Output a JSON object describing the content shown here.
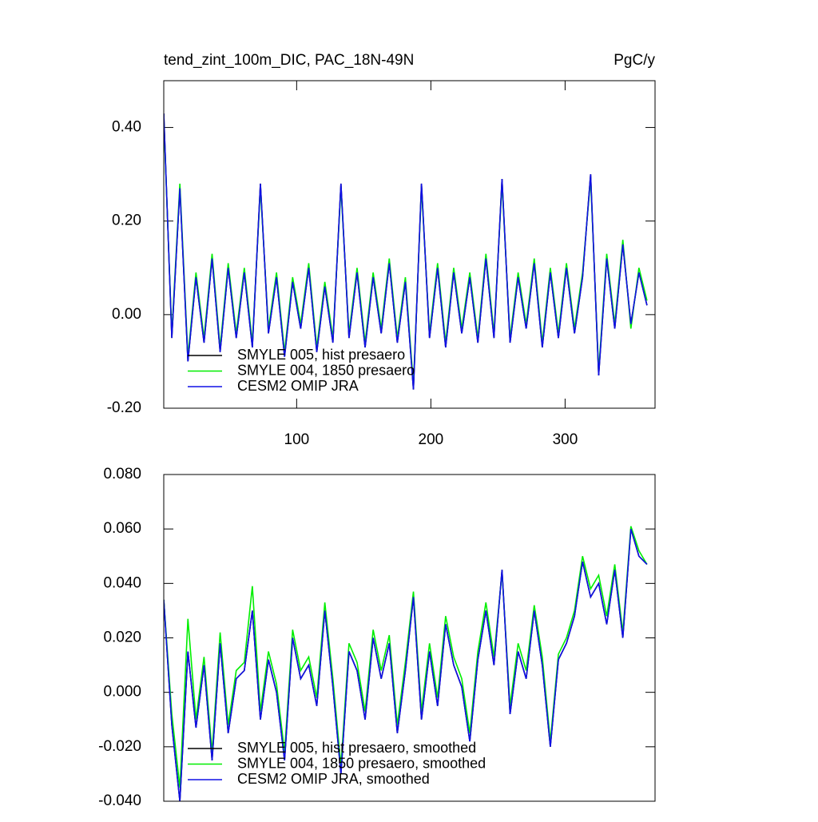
{
  "chart_data": [
    {
      "type": "line",
      "title": "tend_zint_100m_DIC, PAC_18N-49N",
      "units": "PgC/y",
      "x": [
        1,
        7,
        13,
        19,
        25,
        31,
        37,
        43,
        49,
        55,
        61,
        67,
        73,
        79,
        85,
        91,
        97,
        103,
        109,
        115,
        121,
        127,
        133,
        139,
        145,
        151,
        157,
        163,
        169,
        175,
        181,
        187,
        193,
        199,
        205,
        211,
        217,
        223,
        229,
        235,
        241,
        247,
        253,
        259,
        265,
        271,
        277,
        283,
        289,
        295,
        301,
        307,
        313,
        319,
        325,
        331,
        337,
        343,
        349,
        355,
        361
      ],
      "xlim": [
        1,
        367
      ],
      "xticks": [
        100,
        200,
        300
      ],
      "ylim": [
        -0.2,
        0.5
      ],
      "yticks": [
        {
          "value": -0.2,
          "label": "-0.20"
        },
        {
          "value": 0,
          "label": "0.00"
        },
        {
          "value": 0.2,
          "label": "0.20"
        },
        {
          "value": 0.4,
          "label": "0.40"
        }
      ],
      "legend": "lower left",
      "series": [
        {
          "name": "SMYLE 005, hist presaero",
          "color": "#000000",
          "values": [
            0.43,
            -0.05,
            0.27,
            -0.1,
            0.08,
            -0.06,
            0.12,
            -0.08,
            0.1,
            -0.05,
            0.09,
            -0.07,
            0.28,
            -0.04,
            0.08,
            -0.09,
            0.07,
            -0.03,
            0.1,
            -0.08,
            0.06,
            -0.06,
            0.28,
            -0.05,
            0.09,
            -0.07,
            0.08,
            -0.04,
            0.11,
            -0.06,
            0.07,
            -0.16,
            0.28,
            -0.05,
            0.1,
            -0.07,
            0.09,
            -0.04,
            0.08,
            -0.06,
            0.12,
            -0.05,
            0.29,
            -0.06,
            0.08,
            -0.03,
            0.11,
            -0.07,
            0.09,
            -0.05,
            0.1,
            -0.04,
            0.08,
            0.3,
            -0.13,
            0.12,
            -0.03,
            0.15,
            -0.02,
            0.09,
            0.02
          ]
        },
        {
          "name": "SMYLE 004, 1850 presaero",
          "color": "#00ee00",
          "values": [
            0.42,
            -0.04,
            0.28,
            -0.09,
            0.09,
            -0.05,
            0.13,
            -0.07,
            0.11,
            -0.04,
            0.1,
            -0.06,
            0.27,
            -0.03,
            0.09,
            -0.08,
            0.08,
            -0.02,
            0.11,
            -0.07,
            0.07,
            -0.05,
            0.27,
            -0.04,
            0.1,
            -0.06,
            0.09,
            -0.03,
            0.12,
            -0.05,
            0.08,
            -0.15,
            0.27,
            -0.04,
            0.11,
            -0.06,
            0.1,
            -0.03,
            0.09,
            -0.05,
            0.13,
            -0.04,
            0.28,
            -0.05,
            0.09,
            -0.02,
            0.12,
            -0.06,
            0.1,
            -0.04,
            0.11,
            -0.03,
            0.09,
            0.29,
            -0.12,
            0.13,
            -0.02,
            0.16,
            -0.03,
            0.1,
            0.03
          ]
        },
        {
          "name": "CESM2 OMIP JRA",
          "color": "#1010e6",
          "values": [
            0.43,
            -0.05,
            0.27,
            -0.1,
            0.08,
            -0.06,
            0.12,
            -0.08,
            0.1,
            -0.05,
            0.09,
            -0.07,
            0.28,
            -0.04,
            0.08,
            -0.09,
            0.07,
            -0.03,
            0.1,
            -0.08,
            0.06,
            -0.06,
            0.28,
            -0.05,
            0.09,
            -0.07,
            0.08,
            -0.04,
            0.11,
            -0.06,
            0.07,
            -0.16,
            0.28,
            -0.05,
            0.1,
            -0.07,
            0.09,
            -0.04,
            0.08,
            -0.06,
            0.12,
            -0.05,
            0.29,
            -0.06,
            0.08,
            -0.03,
            0.11,
            -0.07,
            0.09,
            -0.05,
            0.1,
            -0.04,
            0.08,
            0.3,
            -0.13,
            0.12,
            -0.03,
            0.15,
            -0.02,
            0.09,
            0.02
          ]
        }
      ]
    },
    {
      "type": "line",
      "x": [
        1,
        7,
        13,
        19,
        25,
        31,
        37,
        43,
        49,
        55,
        61,
        67,
        73,
        79,
        85,
        91,
        97,
        103,
        109,
        115,
        121,
        127,
        133,
        139,
        145,
        151,
        157,
        163,
        169,
        175,
        181,
        187,
        193,
        199,
        205,
        211,
        217,
        223,
        229,
        235,
        241,
        247,
        253,
        259,
        265,
        271,
        277,
        283,
        289,
        295,
        301,
        307,
        313,
        319,
        325,
        331,
        337,
        343,
        349,
        355,
        361
      ],
      "xlim": [
        1,
        367
      ],
      "ylim": [
        -0.04,
        0.08
      ],
      "yticks": [
        {
          "value": -0.04,
          "label": "-0.040"
        },
        {
          "value": -0.02,
          "label": "-0.020"
        },
        {
          "value": 0,
          "label": "0.000"
        },
        {
          "value": 0.02,
          "label": "0.020"
        },
        {
          "value": 0.04,
          "label": "0.040"
        },
        {
          "value": 0.06,
          "label": "0.060"
        },
        {
          "value": 0.08,
          "label": "0.080"
        }
      ],
      "legend": "lower left",
      "series": [
        {
          "name": "SMYLE 005, hist presaero, smoothed",
          "color": "#000000",
          "values": [
            0.034,
            -0.012,
            -0.04,
            0.015,
            -0.013,
            0.01,
            -0.025,
            0.018,
            -0.015,
            0.005,
            0.008,
            0.03,
            -0.01,
            0.012,
            0.0,
            -0.025,
            0.02,
            0.005,
            0.01,
            -0.005,
            0.03,
            0.002,
            -0.03,
            0.015,
            0.008,
            -0.01,
            0.02,
            0.005,
            0.018,
            -0.015,
            0.008,
            0.035,
            -0.01,
            0.015,
            -0.005,
            0.025,
            0.01,
            0.002,
            -0.018,
            0.012,
            0.03,
            0.01,
            0.045,
            -0.008,
            0.015,
            0.005,
            0.03,
            0.01,
            -0.02,
            0.012,
            0.018,
            0.028,
            0.048,
            0.035,
            0.04,
            0.025,
            0.045,
            0.02,
            0.06,
            0.05,
            0.047
          ]
        },
        {
          "name": "SMYLE 004, 1850 presaero, smoothed",
          "color": "#00ee00",
          "values": [
            0.034,
            -0.008,
            -0.035,
            0.027,
            -0.01,
            0.013,
            -0.022,
            0.022,
            -0.012,
            0.008,
            0.011,
            0.039,
            -0.007,
            0.015,
            0.003,
            -0.022,
            0.023,
            0.008,
            0.013,
            -0.002,
            0.033,
            0.005,
            -0.027,
            0.018,
            0.011,
            -0.007,
            0.023,
            0.008,
            0.021,
            -0.012,
            0.011,
            0.037,
            -0.007,
            0.018,
            -0.002,
            0.028,
            0.013,
            0.005,
            -0.015,
            0.015,
            0.033,
            0.013,
            0.044,
            -0.005,
            0.018,
            0.008,
            0.032,
            0.013,
            -0.018,
            0.014,
            0.02,
            0.03,
            0.05,
            0.038,
            0.043,
            0.028,
            0.047,
            0.022,
            0.061,
            0.052,
            0.047
          ]
        },
        {
          "name": "CESM2 OMIP JRA, smoothed",
          "color": "#1010e6",
          "values": [
            0.034,
            -0.012,
            -0.04,
            0.015,
            -0.013,
            0.01,
            -0.025,
            0.018,
            -0.015,
            0.005,
            0.008,
            0.03,
            -0.01,
            0.012,
            0.0,
            -0.025,
            0.02,
            0.005,
            0.01,
            -0.005,
            0.03,
            0.002,
            -0.03,
            0.015,
            0.008,
            -0.01,
            0.02,
            0.005,
            0.018,
            -0.015,
            0.008,
            0.035,
            -0.01,
            0.015,
            -0.005,
            0.025,
            0.01,
            0.002,
            -0.018,
            0.012,
            0.03,
            0.01,
            0.045,
            -0.008,
            0.015,
            0.005,
            0.03,
            0.01,
            -0.02,
            0.012,
            0.018,
            0.028,
            0.048,
            0.035,
            0.04,
            0.025,
            0.045,
            0.02,
            0.06,
            0.05,
            0.047
          ]
        }
      ]
    }
  ]
}
